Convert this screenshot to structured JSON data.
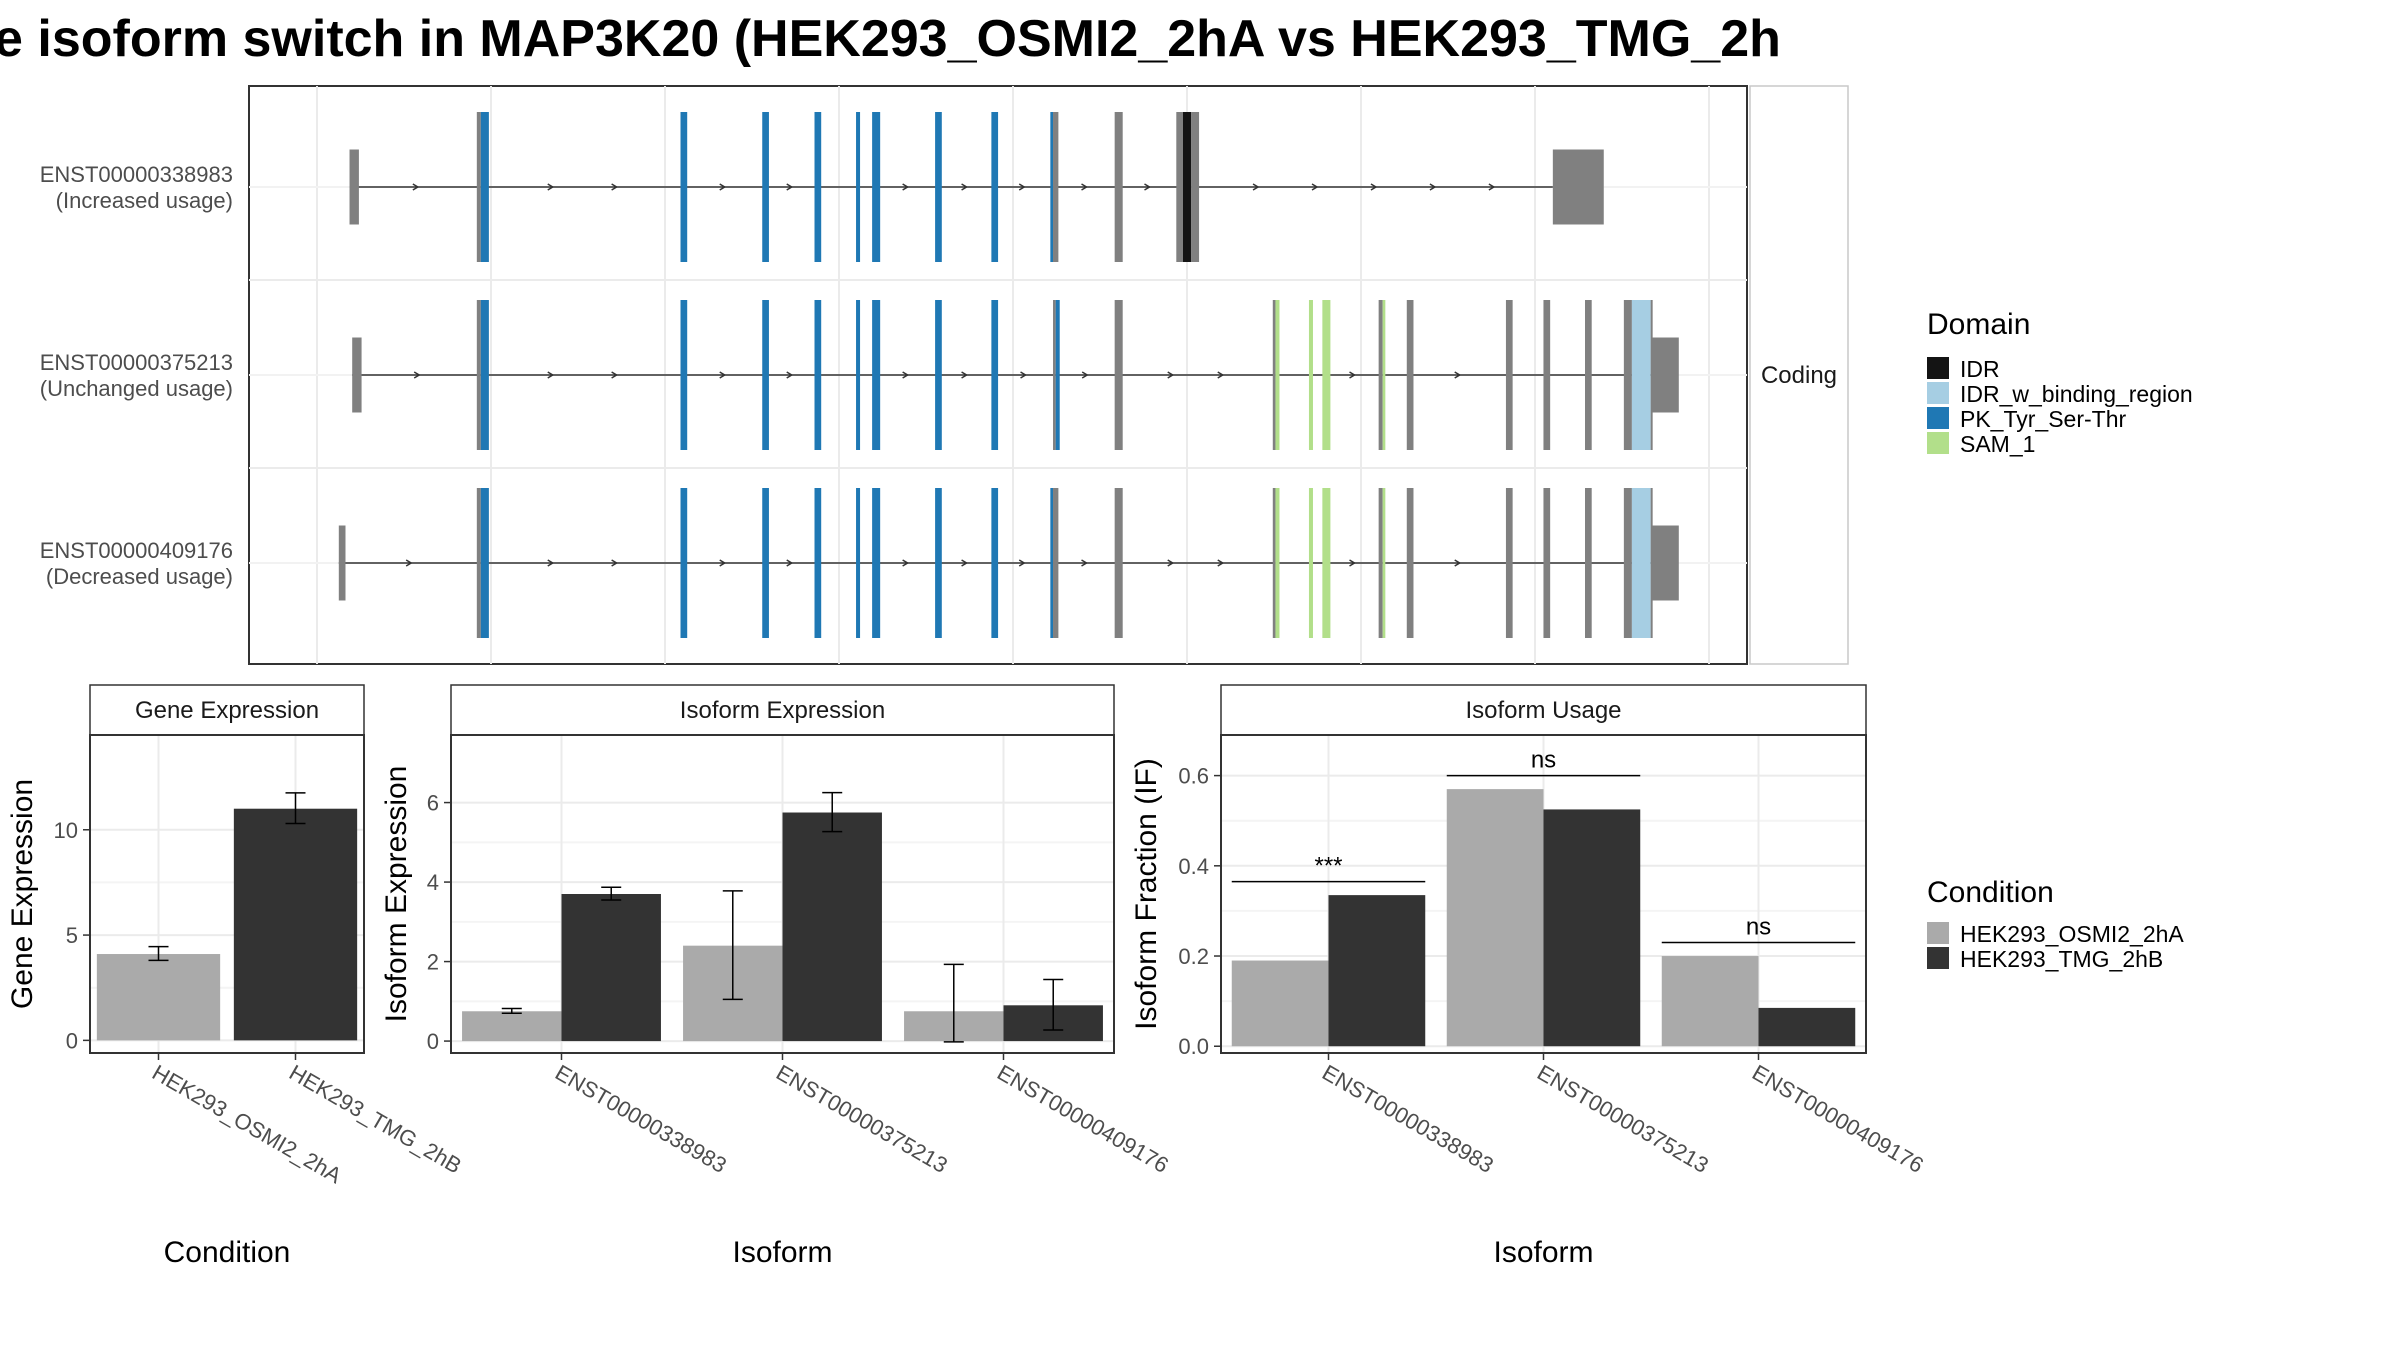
{
  "title": "e isoform switch in MAP3K20 (HEK293_OSMI2_2hA vs HEK293_TMG_2h",
  "structure": {
    "facet_label": "Coding",
    "isoforms": [
      {
        "label_id": "ENST00000338983",
        "label_usage": "(Increased usage)",
        "ends": [
          {
            "s": 0.028,
            "e": 0.035,
            "tall": false
          },
          {
            "s": 0.926,
            "e": 0.964,
            "tall": false
          }
        ],
        "exons": [
          {
            "s": 0.123,
            "e": 0.126,
            "c": "grey"
          },
          {
            "s": 0.126,
            "e": 0.132,
            "c": "PK_Tyr_Ser-Thr"
          },
          {
            "s": 0.275,
            "e": 0.28,
            "c": "PK_Tyr_Ser-Thr"
          },
          {
            "s": 0.336,
            "e": 0.341,
            "c": "PK_Tyr_Ser-Thr"
          },
          {
            "s": 0.375,
            "e": 0.38,
            "c": "PK_Tyr_Ser-Thr"
          },
          {
            "s": 0.406,
            "e": 0.409,
            "c": "PK_Tyr_Ser-Thr"
          },
          {
            "s": 0.418,
            "e": 0.424,
            "c": "PK_Tyr_Ser-Thr"
          },
          {
            "s": 0.465,
            "e": 0.47,
            "c": "PK_Tyr_Ser-Thr"
          },
          {
            "s": 0.507,
            "e": 0.512,
            "c": "PK_Tyr_Ser-Thr"
          },
          {
            "s": 0.551,
            "e": 0.553,
            "c": "PK_Tyr_Ser-Thr"
          },
          {
            "s": 0.553,
            "e": 0.557,
            "c": "grey"
          },
          {
            "s": 0.599,
            "e": 0.605,
            "c": "grey"
          },
          {
            "s": 0.645,
            "e": 0.65,
            "c": "grey"
          },
          {
            "s": 0.65,
            "e": 0.656,
            "c": "IDR"
          },
          {
            "s": 0.656,
            "e": 0.662,
            "c": "grey"
          }
        ]
      },
      {
        "label_id": "ENST00000375213",
        "label_usage": "(Unchanged usage)",
        "ends": [
          {
            "s": 0.03,
            "e": 0.037,
            "tall": false
          },
          {
            "s": 1.0,
            "e": 1.02,
            "tall": false
          }
        ],
        "exons": [
          {
            "s": 0.123,
            "e": 0.126,
            "c": "grey"
          },
          {
            "s": 0.126,
            "e": 0.132,
            "c": "PK_Tyr_Ser-Thr"
          },
          {
            "s": 0.275,
            "e": 0.28,
            "c": "PK_Tyr_Ser-Thr"
          },
          {
            "s": 0.336,
            "e": 0.341,
            "c": "PK_Tyr_Ser-Thr"
          },
          {
            "s": 0.375,
            "e": 0.38,
            "c": "PK_Tyr_Ser-Thr"
          },
          {
            "s": 0.406,
            "e": 0.409,
            "c": "PK_Tyr_Ser-Thr"
          },
          {
            "s": 0.418,
            "e": 0.424,
            "c": "PK_Tyr_Ser-Thr"
          },
          {
            "s": 0.465,
            "e": 0.47,
            "c": "PK_Tyr_Ser-Thr"
          },
          {
            "s": 0.507,
            "e": 0.512,
            "c": "PK_Tyr_Ser-Thr"
          },
          {
            "s": 0.553,
            "e": 0.555,
            "c": "grey"
          },
          {
            "s": 0.555,
            "e": 0.558,
            "c": "PK_Tyr_Ser-Thr"
          },
          {
            "s": 0.599,
            "e": 0.605,
            "c": "grey"
          },
          {
            "s": 0.717,
            "e": 0.719,
            "c": "grey"
          },
          {
            "s": 0.719,
            "e": 0.722,
            "c": "SAM_1"
          },
          {
            "s": 0.744,
            "e": 0.747,
            "c": "SAM_1"
          },
          {
            "s": 0.754,
            "e": 0.76,
            "c": "SAM_1"
          },
          {
            "s": 0.796,
            "e": 0.799,
            "c": "grey"
          },
          {
            "s": 0.799,
            "e": 0.801,
            "c": "SAM_1"
          },
          {
            "s": 0.817,
            "e": 0.822,
            "c": "grey"
          },
          {
            "s": 0.891,
            "e": 0.896,
            "c": "grey"
          },
          {
            "s": 0.919,
            "e": 0.924,
            "c": "grey"
          },
          {
            "s": 0.95,
            "e": 0.955,
            "c": "grey"
          },
          {
            "s": 0.979,
            "e": 0.985,
            "c": "grey"
          },
          {
            "s": 0.985,
            "e": 0.999,
            "c": "IDR_w_binding_region"
          },
          {
            "s": 0.999,
            "e": 1.0,
            "c": "grey"
          }
        ]
      },
      {
        "label_id": "ENST00000409176",
        "label_usage": "(Decreased usage)",
        "ends": [
          {
            "s": 0.02,
            "e": 0.025,
            "tall": false
          },
          {
            "s": 1.0,
            "e": 1.02,
            "tall": false
          }
        ],
        "exons": [
          {
            "s": 0.123,
            "e": 0.126,
            "c": "grey"
          },
          {
            "s": 0.126,
            "e": 0.132,
            "c": "PK_Tyr_Ser-Thr"
          },
          {
            "s": 0.275,
            "e": 0.28,
            "c": "PK_Tyr_Ser-Thr"
          },
          {
            "s": 0.336,
            "e": 0.341,
            "c": "PK_Tyr_Ser-Thr"
          },
          {
            "s": 0.375,
            "e": 0.38,
            "c": "PK_Tyr_Ser-Thr"
          },
          {
            "s": 0.406,
            "e": 0.409,
            "c": "PK_Tyr_Ser-Thr"
          },
          {
            "s": 0.418,
            "e": 0.424,
            "c": "PK_Tyr_Ser-Thr"
          },
          {
            "s": 0.465,
            "e": 0.47,
            "c": "PK_Tyr_Ser-Thr"
          },
          {
            "s": 0.507,
            "e": 0.512,
            "c": "PK_Tyr_Ser-Thr"
          },
          {
            "s": 0.551,
            "e": 0.553,
            "c": "PK_Tyr_Ser-Thr"
          },
          {
            "s": 0.553,
            "e": 0.557,
            "c": "grey"
          },
          {
            "s": 0.599,
            "e": 0.605,
            "c": "grey"
          },
          {
            "s": 0.717,
            "e": 0.719,
            "c": "grey"
          },
          {
            "s": 0.719,
            "e": 0.722,
            "c": "SAM_1"
          },
          {
            "s": 0.744,
            "e": 0.747,
            "c": "SAM_1"
          },
          {
            "s": 0.754,
            "e": 0.76,
            "c": "SAM_1"
          },
          {
            "s": 0.796,
            "e": 0.799,
            "c": "grey"
          },
          {
            "s": 0.799,
            "e": 0.801,
            "c": "SAM_1"
          },
          {
            "s": 0.817,
            "e": 0.822,
            "c": "grey"
          },
          {
            "s": 0.891,
            "e": 0.896,
            "c": "grey"
          },
          {
            "s": 0.919,
            "e": 0.924,
            "c": "grey"
          },
          {
            "s": 0.95,
            "e": 0.955,
            "c": "grey"
          },
          {
            "s": 0.979,
            "e": 0.985,
            "c": "grey"
          },
          {
            "s": 0.985,
            "e": 0.999,
            "c": "IDR_w_binding_region"
          },
          {
            "s": 0.999,
            "e": 1.0,
            "c": "grey"
          }
        ]
      }
    ]
  },
  "domain_legend": {
    "title": "Domain",
    "entries": [
      {
        "name": "IDR",
        "color": "#141414"
      },
      {
        "name": "IDR_w_binding_region",
        "color": "#a6cee3"
      },
      {
        "name": "PK_Tyr_Ser-Thr",
        "color": "#1f78b4"
      },
      {
        "name": "SAM_1",
        "color": "#b2df8a"
      }
    ]
  },
  "condition_legend": {
    "title": "Condition",
    "entries": [
      {
        "name": "HEK293_OSMI2_2hA",
        "color": "#aaaaaa"
      },
      {
        "name": "HEK293_TMG_2hB",
        "color": "#333333"
      }
    ]
  },
  "chart_data": [
    {
      "type": "bar",
      "title": "Gene Expression",
      "xlabel": "Condition",
      "ylabel": "Gene Expression",
      "ylim": [
        -0.6,
        14.5
      ],
      "yticks": [
        0,
        5,
        10
      ],
      "categories": [
        "HEK293_OSMI2_2hA",
        "HEK293_TMG_2hB"
      ],
      "values": [
        4.1,
        11.0
      ],
      "errors": [
        [
          3.8,
          4.45
        ],
        [
          10.3,
          11.75
        ]
      ]
    },
    {
      "type": "bar",
      "title": "Isoform Expression",
      "xlabel": "Isoform",
      "ylabel": "Isoform Expression",
      "ylim": [
        -0.3,
        7.7
      ],
      "yticks": [
        0,
        2,
        4,
        6
      ],
      "categories": [
        "ENST00000338983",
        "ENST00000375213",
        "ENST00000409176"
      ],
      "series": [
        {
          "name": "HEK293_OSMI2_2hA",
          "values": [
            0.75,
            2.4,
            0.75
          ],
          "errors": [
            [
              0.7,
              0.82
            ],
            [
              1.05,
              3.78
            ],
            [
              -0.02,
              1.93
            ]
          ]
        },
        {
          "name": "HEK293_TMG_2hB",
          "values": [
            3.7,
            5.75,
            0.9
          ],
          "errors": [
            [
              3.55,
              3.87
            ],
            [
              5.27,
              6.25
            ],
            [
              0.28,
              1.55
            ]
          ]
        }
      ]
    },
    {
      "type": "bar",
      "title": "Isoform Usage",
      "xlabel": "Isoform",
      "ylabel": "Isoform Fraction (IF)",
      "ylim": [
        -0.015,
        0.69
      ],
      "yticks": [
        0.0,
        0.2,
        0.4,
        0.6
      ],
      "ytick_labels": [
        "0.0",
        "0.2",
        "0.4",
        "0.6"
      ],
      "categories": [
        "ENST00000338983",
        "ENST00000375213",
        "ENST00000409176"
      ],
      "series": [
        {
          "name": "HEK293_OSMI2_2hA",
          "values": [
            0.19,
            0.57,
            0.2
          ]
        },
        {
          "name": "HEK293_TMG_2hB",
          "values": [
            0.335,
            0.525,
            0.085
          ]
        }
      ],
      "significance": [
        {
          "label": "***",
          "y": 0.365
        },
        {
          "label": "ns",
          "y": 0.6
        },
        {
          "label": "ns",
          "y": 0.23
        }
      ]
    }
  ]
}
